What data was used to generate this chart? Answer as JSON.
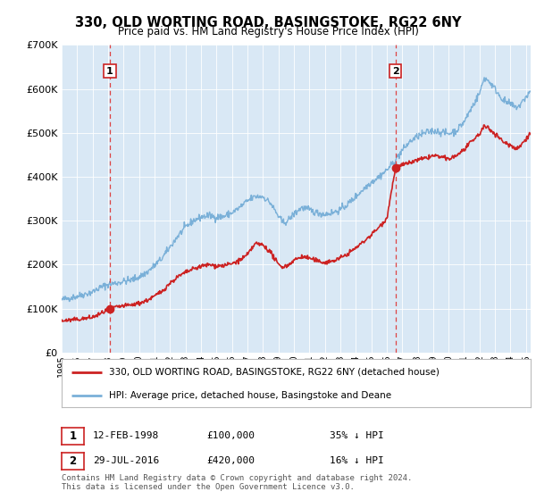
{
  "title": "330, OLD WORTING ROAD, BASINGSTOKE, RG22 6NY",
  "subtitle": "Price paid vs. HM Land Registry's House Price Index (HPI)",
  "ylim": [
    0,
    700000
  ],
  "yticks": [
    0,
    100000,
    200000,
    300000,
    400000,
    500000,
    600000,
    700000
  ],
  "ytick_labels": [
    "£0",
    "£100K",
    "£200K",
    "£300K",
    "£400K",
    "£500K",
    "£600K",
    "£700K"
  ],
  "bg_color": "#d9e8f5",
  "hpi_color": "#7ab0d8",
  "price_color": "#cc2222",
  "dashed_color": "#dd4444",
  "sale1_date_num": 1998.12,
  "sale1_price": 100000,
  "sale1_label": "1",
  "sale2_date_num": 2016.57,
  "sale2_price": 420000,
  "sale2_label": "2",
  "legend_line1": "330, OLD WORTING ROAD, BASINGSTOKE, RG22 6NY (detached house)",
  "legend_line2": "HPI: Average price, detached house, Basingstoke and Deane",
  "ann1_date": "12-FEB-1998",
  "ann1_price": "£100,000",
  "ann1_hpi": "35% ↓ HPI",
  "ann2_date": "29-JUL-2016",
  "ann2_price": "£420,000",
  "ann2_hpi": "16% ↓ HPI",
  "footnote": "Contains HM Land Registry data © Crown copyright and database right 2024.\nThis data is licensed under the Open Government Licence v3.0.",
  "xmin": 1995.0,
  "xmax": 2025.3,
  "hpi_anchors": [
    [
      1995.0,
      120000
    ],
    [
      1996.0,
      128000
    ],
    [
      1997.0,
      138000
    ],
    [
      1997.5,
      148000
    ],
    [
      1998.0,
      155000
    ],
    [
      1998.5,
      158000
    ],
    [
      1999.0,
      162000
    ],
    [
      1999.5,
      165000
    ],
    [
      2000.0,
      172000
    ],
    [
      2000.5,
      182000
    ],
    [
      2001.0,
      198000
    ],
    [
      2001.5,
      215000
    ],
    [
      2002.0,
      240000
    ],
    [
      2002.5,
      265000
    ],
    [
      2003.0,
      285000
    ],
    [
      2003.5,
      300000
    ],
    [
      2004.0,
      308000
    ],
    [
      2004.5,
      312000
    ],
    [
      2005.0,
      308000
    ],
    [
      2005.5,
      310000
    ],
    [
      2006.0,
      318000
    ],
    [
      2006.5,
      330000
    ],
    [
      2007.0,
      345000
    ],
    [
      2007.5,
      355000
    ],
    [
      2008.0,
      355000
    ],
    [
      2008.5,
      340000
    ],
    [
      2009.0,
      310000
    ],
    [
      2009.3,
      295000
    ],
    [
      2009.6,
      300000
    ],
    [
      2010.0,
      315000
    ],
    [
      2010.5,
      330000
    ],
    [
      2011.0,
      325000
    ],
    [
      2011.5,
      318000
    ],
    [
      2012.0,
      315000
    ],
    [
      2012.5,
      318000
    ],
    [
      2013.0,
      325000
    ],
    [
      2013.5,
      338000
    ],
    [
      2014.0,
      355000
    ],
    [
      2014.5,
      372000
    ],
    [
      2015.0,
      388000
    ],
    [
      2015.5,
      400000
    ],
    [
      2016.0,
      415000
    ],
    [
      2016.5,
      435000
    ],
    [
      2017.0,
      460000
    ],
    [
      2017.5,
      480000
    ],
    [
      2018.0,
      492000
    ],
    [
      2018.5,
      500000
    ],
    [
      2019.0,
      505000
    ],
    [
      2019.5,
      502000
    ],
    [
      2020.0,
      498000
    ],
    [
      2020.5,
      505000
    ],
    [
      2021.0,
      525000
    ],
    [
      2021.5,
      558000
    ],
    [
      2022.0,
      590000
    ],
    [
      2022.3,
      625000
    ],
    [
      2022.6,
      618000
    ],
    [
      2023.0,
      600000
    ],
    [
      2023.3,
      585000
    ],
    [
      2023.6,
      572000
    ],
    [
      2024.0,
      565000
    ],
    [
      2024.3,
      558000
    ],
    [
      2024.6,
      562000
    ],
    [
      2025.0,
      582000
    ],
    [
      2025.3,
      595000
    ]
  ],
  "price_anchors": [
    [
      1995.0,
      72000
    ],
    [
      1996.0,
      75000
    ],
    [
      1997.0,
      80000
    ],
    [
      1997.5,
      88000
    ],
    [
      1998.12,
      100000
    ],
    [
      1998.5,
      103000
    ],
    [
      1999.0,
      106000
    ],
    [
      1999.5,
      108000
    ],
    [
      2000.0,
      112000
    ],
    [
      2000.5,
      118000
    ],
    [
      2001.0,
      128000
    ],
    [
      2001.5,
      140000
    ],
    [
      2002.0,
      158000
    ],
    [
      2002.5,
      172000
    ],
    [
      2003.0,
      182000
    ],
    [
      2003.5,
      190000
    ],
    [
      2004.0,
      196000
    ],
    [
      2004.5,
      200000
    ],
    [
      2005.0,
      197000
    ],
    [
      2005.5,
      198000
    ],
    [
      2006.0,
      202000
    ],
    [
      2006.5,
      210000
    ],
    [
      2007.0,
      222000
    ],
    [
      2007.5,
      248000
    ],
    [
      2008.0,
      245000
    ],
    [
      2008.5,
      228000
    ],
    [
      2009.0,
      200000
    ],
    [
      2009.3,
      195000
    ],
    [
      2009.6,
      198000
    ],
    [
      2010.0,
      210000
    ],
    [
      2010.5,
      218000
    ],
    [
      2011.0,
      215000
    ],
    [
      2011.5,
      208000
    ],
    [
      2012.0,
      205000
    ],
    [
      2012.5,
      208000
    ],
    [
      2013.0,
      215000
    ],
    [
      2013.5,
      225000
    ],
    [
      2014.0,
      238000
    ],
    [
      2014.5,
      252000
    ],
    [
      2015.0,
      268000
    ],
    [
      2015.5,
      285000
    ],
    [
      2016.0,
      305000
    ],
    [
      2016.57,
      420000
    ],
    [
      2016.9,
      425000
    ],
    [
      2017.5,
      432000
    ],
    [
      2018.0,
      438000
    ],
    [
      2018.5,
      442000
    ],
    [
      2019.0,
      448000
    ],
    [
      2019.5,
      445000
    ],
    [
      2020.0,
      440000
    ],
    [
      2020.5,
      448000
    ],
    [
      2021.0,
      462000
    ],
    [
      2021.5,
      480000
    ],
    [
      2022.0,
      498000
    ],
    [
      2022.3,
      515000
    ],
    [
      2022.6,
      510000
    ],
    [
      2023.0,
      498000
    ],
    [
      2023.3,
      488000
    ],
    [
      2023.6,
      478000
    ],
    [
      2024.0,
      472000
    ],
    [
      2024.3,
      465000
    ],
    [
      2024.6,
      468000
    ],
    [
      2025.0,
      488000
    ],
    [
      2025.3,
      498000
    ]
  ]
}
